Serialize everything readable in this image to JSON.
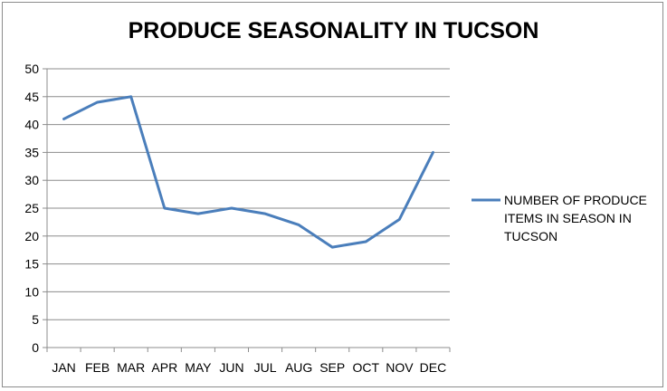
{
  "chart_data": {
    "type": "line",
    "title": "PRODUCE SEASONALITY IN TUCSON",
    "categories": [
      "JAN",
      "FEB",
      "MAR",
      "APR",
      "MAY",
      "JUN",
      "JUL",
      "AUG",
      "SEP",
      "OCT",
      "NOV",
      "DEC"
    ],
    "series": [
      {
        "name": "NUMBER OF PRODUCE ITEMS IN SEASON IN TUCSON",
        "values": [
          41,
          44,
          45,
          25,
          24,
          25,
          24,
          22,
          18,
          19,
          23,
          35
        ],
        "color": "#4a7ebb"
      }
    ],
    "yticks": [
      "0",
      "5",
      "10",
      "15",
      "20",
      "25",
      "30",
      "35",
      "40",
      "45",
      "50"
    ],
    "ylim": [
      0,
      50
    ],
    "grid": true,
    "legend_position": "right"
  }
}
